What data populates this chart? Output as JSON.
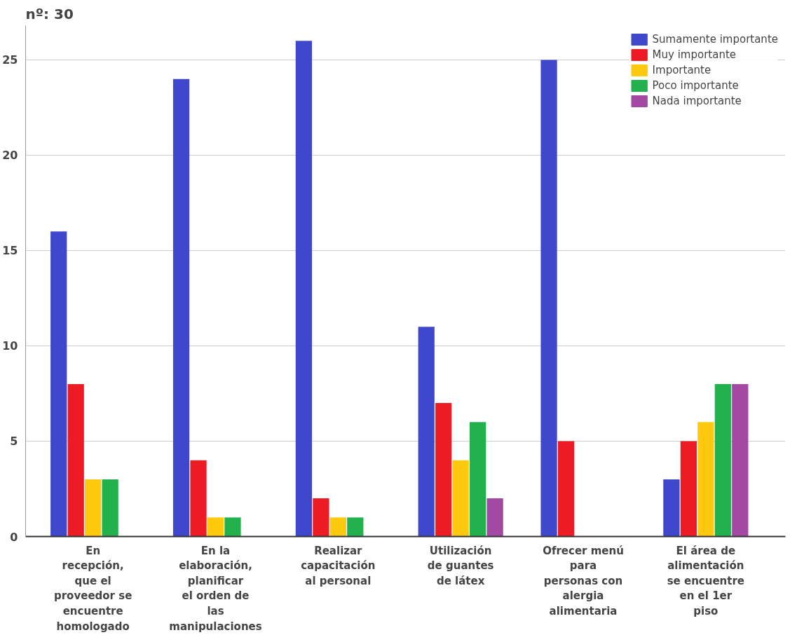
{
  "chart_data": {
    "type": "bar",
    "title": "nº: 30",
    "categories": [
      "En recepción, que el proveedor se encuentre homologado",
      "En la elaboración, planificar el orden de las manipulaciones",
      "Realizar capacitación al personal",
      "Utilización de guantes de látex",
      "Ofrecer menú para personas con alergia alimentaria",
      "El área de alimentación se encuentre en el 1er piso"
    ],
    "series": [
      {
        "name": "Sumamente importante",
        "color": "#3f48cc",
        "values": [
          16,
          24,
          26,
          11,
          25,
          3
        ]
      },
      {
        "name": "Muy importante",
        "color": "#ed1c24",
        "values": [
          8,
          4,
          2,
          7,
          5,
          5
        ]
      },
      {
        "name": "Importante",
        "color": "#ffc90e",
        "values": [
          3,
          1,
          1,
          4,
          0,
          6
        ]
      },
      {
        "name": "Poco importante",
        "color": "#22b14c",
        "values": [
          3,
          1,
          1,
          6,
          0,
          8
        ]
      },
      {
        "name": "Nada importante",
        "color": "#a349a4",
        "values": [
          0,
          0,
          0,
          2,
          0,
          8
        ]
      }
    ],
    "ylim": [
      0,
      26.8
    ],
    "yticks": [
      0,
      5,
      10,
      15,
      20,
      25
    ],
    "grid": "y",
    "legend": "top right"
  }
}
